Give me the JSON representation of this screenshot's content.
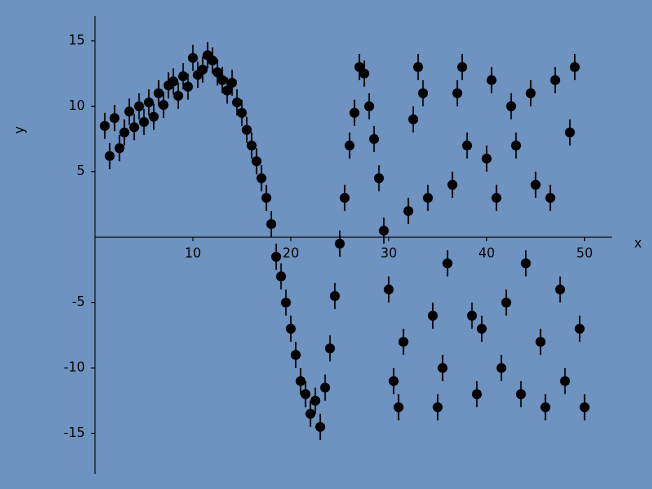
{
  "chart_data": {
    "type": "scatter",
    "x_label": "x",
    "y_label": "y",
    "x": [
      1,
      1.5,
      2,
      2.5,
      3,
      3.5,
      4,
      4.5,
      5,
      5.5,
      6,
      6.5,
      7,
      7.5,
      8,
      8.5,
      9,
      9.5,
      10,
      10.5,
      11,
      11.5,
      12,
      12.5,
      13,
      13.5,
      14,
      14.5,
      15,
      15.5,
      16,
      16.5,
      17,
      17.5,
      18,
      18.5,
      19,
      19.5,
      20,
      20.5,
      21,
      21.5,
      22,
      22.5,
      23,
      23.5,
      24,
      24.5,
      25,
      25.5,
      26,
      26.5,
      27,
      27.5,
      28,
      28.5,
      29,
      29.5,
      30,
      30.5,
      31,
      31.5,
      32,
      32.5,
      33,
      33.5,
      34,
      34.5,
      35,
      35.5,
      36,
      36.5,
      37,
      37.5,
      38,
      38.5,
      39,
      39.5,
      40,
      40.5,
      41,
      41.5,
      42,
      42.5,
      43,
      43.5,
      44,
      44.5,
      45,
      45.5,
      46,
      46.5,
      47,
      47.5,
      48,
      48.5,
      49,
      49.5,
      50
    ],
    "y": [
      8.5,
      6.2,
      9.1,
      6.8,
      8.0,
      9.6,
      8.4,
      10.0,
      8.8,
      10.3,
      9.2,
      11.0,
      10.1,
      11.6,
      11.9,
      10.8,
      12.3,
      11.5,
      13.7,
      12.4,
      12.8,
      13.9,
      13.5,
      12.6,
      12.0,
      11.2,
      11.8,
      10.3,
      9.5,
      8.2,
      7.0,
      5.8,
      4.5,
      3.0,
      1.0,
      -1.5,
      -3.0,
      -5.0,
      -7.0,
      -9.0,
      -11.0,
      -12.0,
      -13.5,
      -12.5,
      -14.5,
      -11.5,
      -8.5,
      -4.5,
      -0.5,
      3.0,
      7.0,
      9.5,
      13.0,
      12.5,
      10.0,
      7.5,
      4.5,
      0.5,
      -4,
      -11,
      -13,
      -8,
      2,
      9,
      13,
      11,
      3,
      -6,
      -13,
      -10,
      -2,
      4,
      11,
      13,
      7,
      -6,
      -12,
      -7,
      6,
      12,
      3,
      -10,
      -5,
      10,
      7,
      -12,
      -2,
      11,
      4,
      -8,
      -13,
      3,
      12,
      -4,
      -11,
      8,
      13,
      -7,
      -13
    ],
    "yerr": 1,
    "color": "#000000",
    "xlim": [
      0,
      52.8
    ],
    "ylim": [
      -18.1,
      16.9
    ],
    "xticks": [
      10,
      20,
      30,
      40,
      50
    ],
    "yticks": [
      -15,
      -10,
      -5,
      5,
      10,
      15
    ]
  }
}
